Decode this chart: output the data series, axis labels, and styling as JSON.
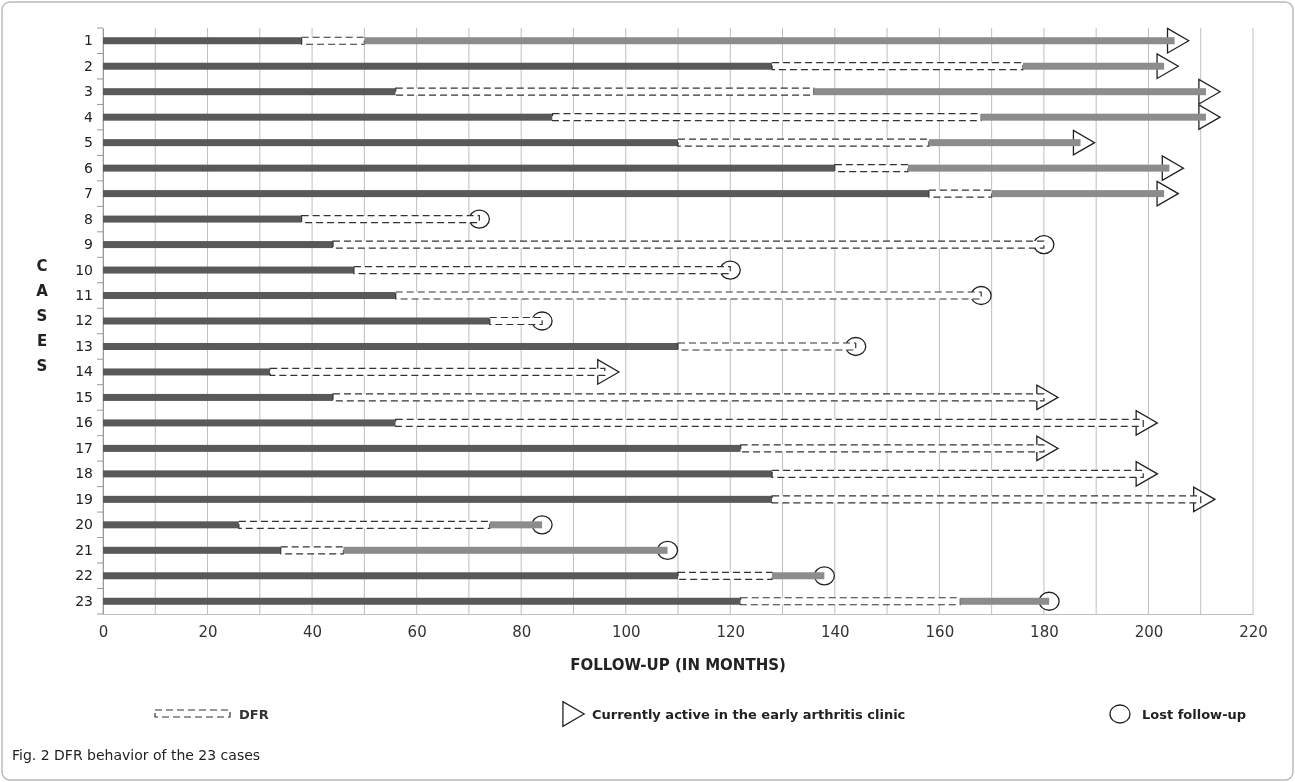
{
  "chart_data": {
    "type": "bar",
    "orientation": "horizontal",
    "stacked": true,
    "categories": [
      "1",
      "2",
      "3",
      "4",
      "5",
      "6",
      "7",
      "8",
      "9",
      "10",
      "11",
      "12",
      "13",
      "14",
      "15",
      "16",
      "17",
      "18",
      "19",
      "20",
      "21",
      "22",
      "23"
    ],
    "series": [
      {
        "color": "#595959",
        "values": [
          38,
          128,
          56,
          86,
          110,
          140,
          158,
          38,
          44,
          48,
          56,
          74,
          110,
          32,
          44,
          56,
          122,
          128,
          128,
          26,
          34,
          110,
          122
        ]
      },
      {
        "name": "DFR",
        "color": "#333333",
        "line_style": "dashed",
        "values": [
          12,
          48,
          80,
          82,
          48,
          14,
          12,
          34,
          136,
          72,
          112,
          10,
          34,
          64,
          136,
          143,
          58,
          71,
          82,
          48,
          12,
          18,
          42
        ]
      },
      {
        "color": "#8c8c8c",
        "values": [
          155,
          27,
          75,
          43,
          29,
          50,
          33,
          null,
          null,
          null,
          null,
          null,
          null,
          null,
          null,
          null,
          null,
          null,
          null,
          10,
          62,
          10,
          17
        ]
      },
      {
        "type": "scatter",
        "name": "Currently active in the early arthritis clinic",
        "marker": "triangle",
        "color": "#ffffff",
        "values": [
          205,
          203,
          211,
          211,
          187,
          204,
          203,
          null,
          null,
          null,
          null,
          null,
          null,
          96,
          180,
          199,
          180,
          199,
          210,
          null,
          null,
          null,
          null
        ]
      },
      {
        "type": "scatter",
        "name": "Lost follow-up",
        "marker": "circle",
        "color": "#ffffff",
        "values": [
          null,
          null,
          null,
          null,
          null,
          null,
          null,
          72,
          180,
          120,
          168,
          84,
          144,
          null,
          null,
          null,
          null,
          null,
          null,
          84,
          108,
          138,
          181
        ]
      }
    ],
    "xlabel": "FOLLOW-UP (IN MONTHS)",
    "ylabel": "CASES",
    "xlim": [
      0,
      220
    ],
    "xticks": [
      0,
      {
        "value": 10,
        "label": null
      },
      20,
      {
        "value": 30,
        "label": null
      },
      40,
      {
        "value": 50,
        "label": null
      },
      60,
      {
        "value": 70,
        "label": null
      },
      80,
      {
        "value": 90,
        "label": null
      },
      100,
      {
        "value": 110,
        "label": null
      },
      120,
      {
        "value": 130,
        "label": null
      },
      140,
      {
        "value": 150,
        "label": null
      },
      160,
      {
        "value": 170,
        "label": null
      },
      180,
      {
        "value": 190,
        "label": null
      },
      200,
      {
        "value": 210,
        "label": null
      },
      220
    ],
    "grid": "x",
    "legend": "bottom",
    "annotations": [
      "Fig. 2 DFR behavior of the 23 cases"
    ]
  }
}
